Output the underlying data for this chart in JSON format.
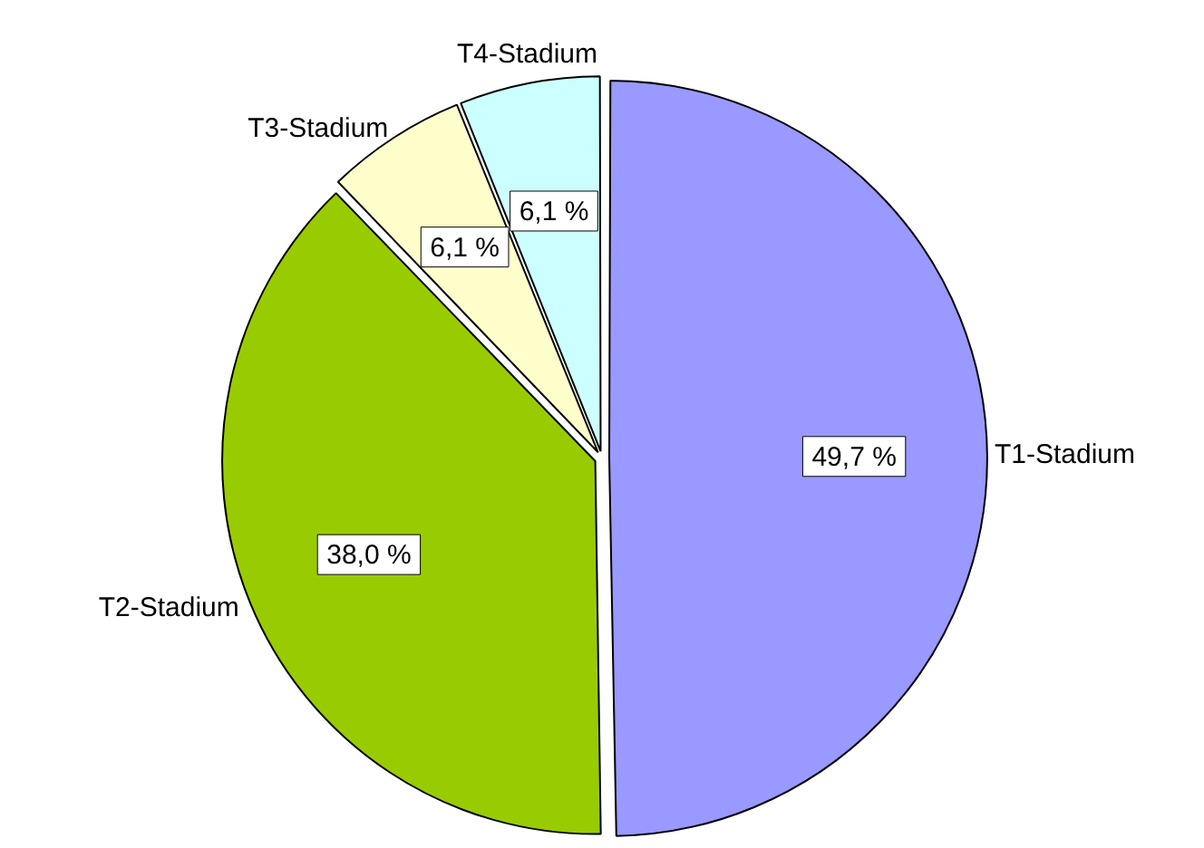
{
  "chart_data": {
    "type": "pie",
    "categories": [
      "T1-Stadium",
      "T2-Stadium",
      "T3-Stadium",
      "T4-Stadium"
    ],
    "values": [
      49.7,
      38.0,
      6.1,
      6.1
    ],
    "colors": [
      "#9999ff",
      "#99cc00",
      "#ffffcc",
      "#ccffff"
    ],
    "value_labels": [
      "49,7 %",
      "38,0 %",
      "6,1 %",
      "6,1 %"
    ],
    "legend": false
  }
}
